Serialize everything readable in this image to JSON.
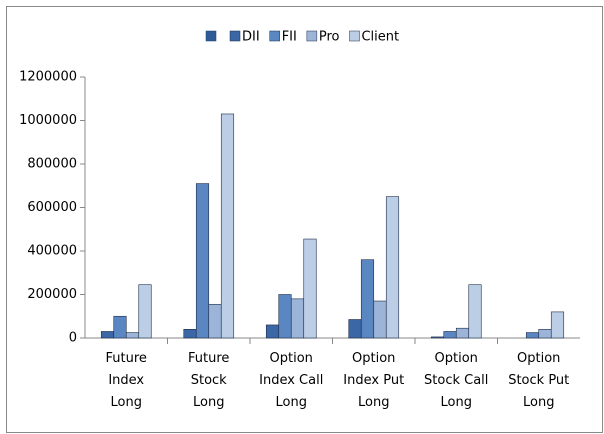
{
  "chart_data": {
    "type": "bar",
    "categories": [
      "Future Index Long",
      "Future Stock Long",
      "Option Index Call Long",
      "Option Index Put Long",
      "Option Stock Call Long",
      "Option Stock Put Long"
    ],
    "series": [
      {
        "name": "DII",
        "color": "#3c67a6",
        "values": [
          30000,
          40000,
          60000,
          85000,
          5000,
          0
        ]
      },
      {
        "name": "FII",
        "color": "#5a86c2",
        "values": [
          100000,
          710000,
          200000,
          360000,
          30000,
          25000
        ]
      },
      {
        "name": "Pro",
        "color": "#9bb4d8",
        "values": [
          25000,
          155000,
          180000,
          170000,
          45000,
          40000
        ]
      },
      {
        "name": "Client",
        "color": "#bccde6",
        "values": [
          245000,
          1030000,
          455000,
          650000,
          245000,
          120000
        ]
      }
    ],
    "ylim": [
      0,
      1200000
    ],
    "yticks": [
      0,
      200000,
      400000,
      600000,
      800000,
      1000000,
      1200000
    ]
  }
}
